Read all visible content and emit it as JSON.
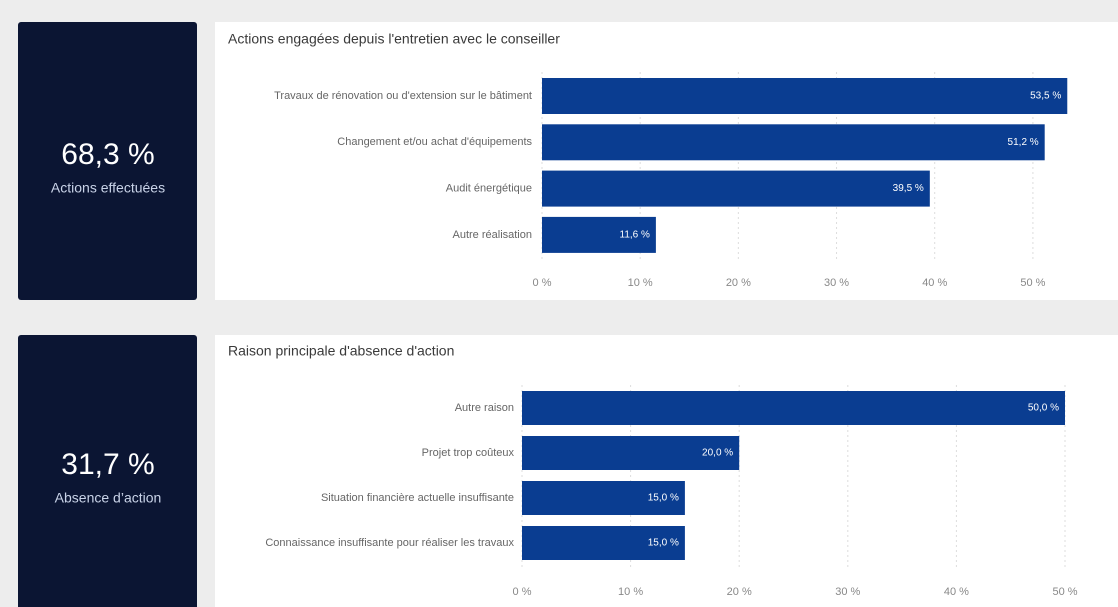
{
  "kpis": [
    {
      "value": "68,3 %",
      "label": "Actions effectuées"
    },
    {
      "value": "31,7 %",
      "label": "Absence d’action"
    }
  ],
  "chart_data": [
    {
      "type": "barh",
      "title": "Actions engagées depuis l'entretien avec le conseiller",
      "categories": [
        "Travaux de rénovation ou d'extension sur le bâtiment",
        "Changement et/ou achat d'équipements",
        "Audit énergétique",
        "Autre réalisation"
      ],
      "values": [
        53.5,
        51.2,
        39.5,
        11.6
      ],
      "value_labels": [
        "53,5 %",
        "51,2 %",
        "39,5 %",
        "11,6 %"
      ],
      "color": "#0a3d91",
      "xlim": [
        0,
        55
      ],
      "xticks": [
        {
          "value": 0,
          "label": "0 %"
        },
        {
          "value": 10,
          "label": "10 %"
        },
        {
          "value": 20,
          "label": "20 %"
        },
        {
          "value": 30,
          "label": "30 %"
        },
        {
          "value": 40,
          "label": "40 %"
        },
        {
          "value": 50,
          "label": "50 %"
        }
      ],
      "grid": true
    },
    {
      "type": "barh",
      "title": "Raison principale d'absence d'action",
      "categories": [
        "Autre raison",
        "Projet trop coûteux",
        "Situation financière actuelle insuffisante",
        "Connaissance insuffisante pour réaliser les travaux"
      ],
      "values": [
        50.0,
        20.0,
        15.0,
        15.0
      ],
      "value_labels": [
        "50,0 %",
        "20,0 %",
        "15,0 %",
        "15,0 %"
      ],
      "color": "#0a3d91",
      "xlim": [
        0,
        50
      ],
      "xticks": [
        {
          "value": 0,
          "label": "0 %"
        },
        {
          "value": 10,
          "label": "10 %"
        },
        {
          "value": 20,
          "label": "20 %"
        },
        {
          "value": 30,
          "label": "30 %"
        },
        {
          "value": 40,
          "label": "40 %"
        },
        {
          "value": 50,
          "label": "50 %"
        }
      ],
      "grid": true
    }
  ]
}
